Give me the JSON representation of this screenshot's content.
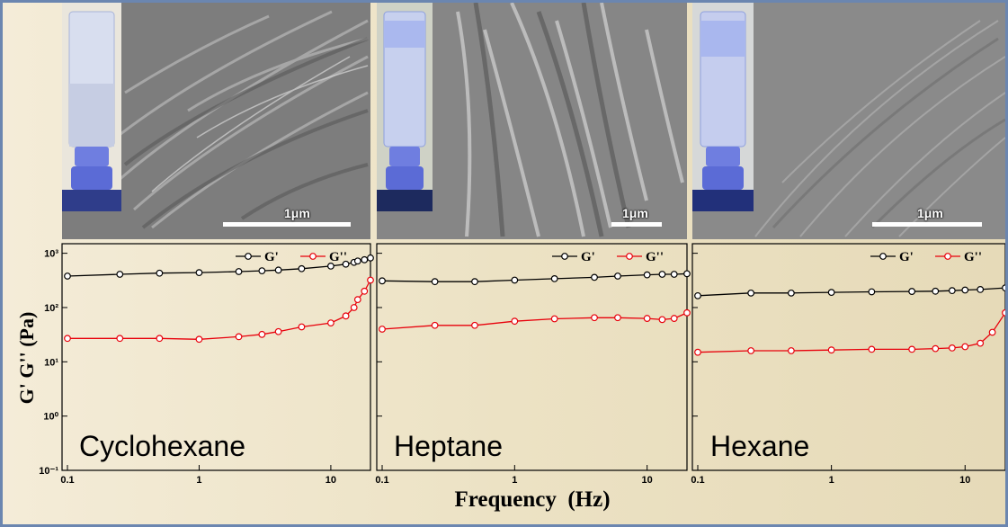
{
  "figure": {
    "y_axis_label": "G' G'' (Pa)",
    "x_axis_label": "Frequency  (Hz)",
    "scale_bar_label": "1μm"
  },
  "colors": {
    "g_prime": "#000000",
    "g_double_prime": "#e8000b",
    "frame": "#6b86b0",
    "background": "#efe6cc"
  },
  "chart_data": [
    {
      "type": "line",
      "title": "Cyclohexane",
      "xscale": "log",
      "yscale": "log",
      "xlim": [
        0.1,
        20
      ],
      "ylim": [
        0.1,
        1500
      ],
      "xticks": [
        "0.1",
        "1",
        "10"
      ],
      "yticks": [
        "10³",
        "10²",
        "10¹",
        "10⁰",
        "10⁻¹"
      ],
      "legend_position": "top-right",
      "series": [
        {
          "name": "G'",
          "color": "#000000",
          "x": [
            0.1,
            0.25,
            0.5,
            1,
            2,
            3,
            4,
            6,
            10,
            13,
            15,
            16,
            18,
            20
          ],
          "y": [
            380,
            410,
            430,
            440,
            460,
            475,
            490,
            520,
            580,
            630,
            680,
            720,
            760,
            820
          ]
        },
        {
          "name": "G''",
          "color": "#e8000b",
          "x": [
            0.1,
            0.25,
            0.5,
            1,
            2,
            3,
            4,
            6,
            10,
            13,
            15,
            16,
            18,
            20
          ],
          "y": [
            27,
            27,
            27,
            26,
            29,
            32,
            36,
            44,
            52,
            70,
            100,
            140,
            200,
            320
          ]
        }
      ]
    },
    {
      "type": "line",
      "title": "Heptane",
      "xscale": "log",
      "yscale": "log",
      "xlim": [
        0.1,
        20
      ],
      "ylim": [
        0.1,
        1500
      ],
      "xticks": [
        "0.1",
        "1",
        "10"
      ],
      "legend_position": "top-right",
      "series": [
        {
          "name": "G'",
          "color": "#000000",
          "x": [
            0.1,
            0.25,
            0.5,
            1,
            2,
            4,
            6,
            10,
            13,
            16,
            20
          ],
          "y": [
            310,
            300,
            300,
            320,
            340,
            360,
            380,
            400,
            410,
            410,
            420
          ]
        },
        {
          "name": "G''",
          "color": "#e8000b",
          "x": [
            0.1,
            0.25,
            0.5,
            1,
            2,
            4,
            6,
            10,
            13,
            16,
            20
          ],
          "y": [
            40,
            47,
            47,
            56,
            62,
            65,
            65,
            63,
            60,
            63,
            80
          ]
        }
      ]
    },
    {
      "type": "line",
      "title": "Hexane",
      "xscale": "log",
      "yscale": "log",
      "xlim": [
        0.1,
        20
      ],
      "ylim": [
        0.1,
        1500
      ],
      "xticks": [
        "0.1",
        "1",
        "10"
      ],
      "legend_position": "top-right",
      "series": [
        {
          "name": "G'",
          "color": "#000000",
          "x": [
            0.1,
            0.25,
            0.5,
            1,
            2,
            4,
            6,
            8,
            10,
            13,
            20
          ],
          "y": [
            165,
            185,
            185,
            190,
            195,
            198,
            200,
            205,
            210,
            215,
            230
          ]
        },
        {
          "name": "G''",
          "color": "#e8000b",
          "x": [
            0.1,
            0.25,
            0.5,
            1,
            2,
            4,
            6,
            8,
            10,
            13,
            16,
            20
          ],
          "y": [
            15,
            16,
            16,
            16.5,
            17,
            17,
            17.5,
            18,
            19,
            22,
            35,
            80
          ]
        }
      ]
    }
  ]
}
